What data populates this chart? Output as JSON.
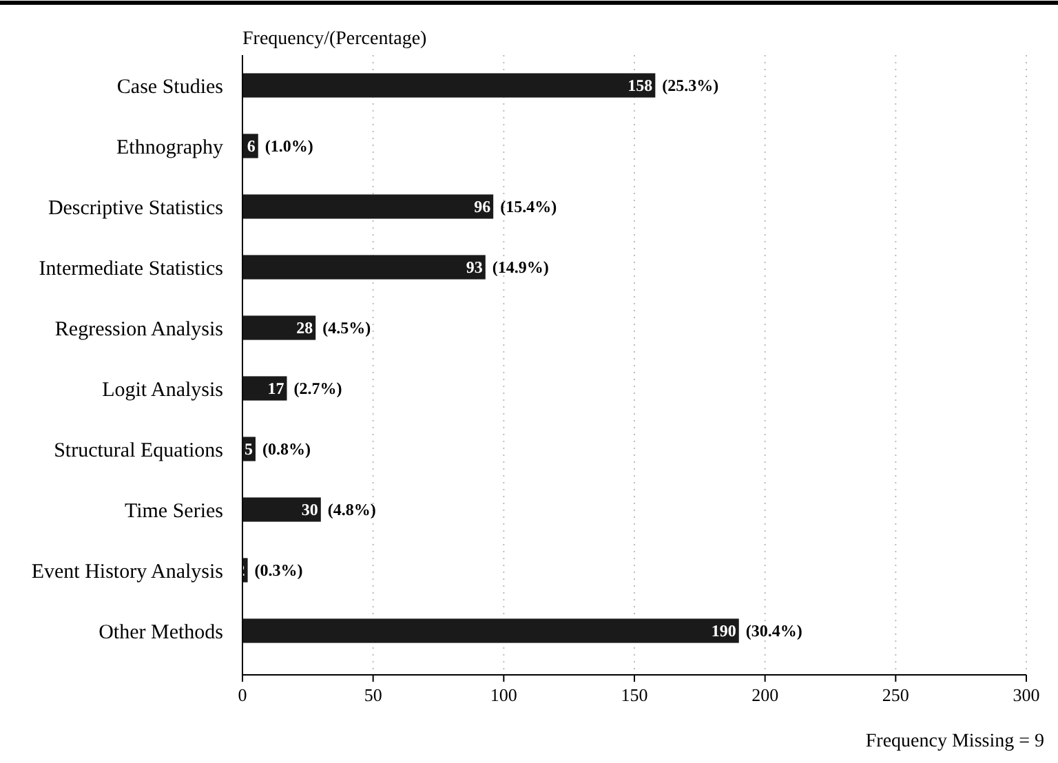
{
  "chart_data": {
    "type": "bar",
    "orientation": "horizontal",
    "xlabel": "Frequency/(Percentage)",
    "categories": [
      "Case Studies",
      "Ethnography",
      "Descriptive Statistics",
      "Intermediate Statistics",
      "Regression Analysis",
      "Logit Analysis",
      "Structural Equations",
      "Time Series",
      "Event History Analysis",
      "Other Methods"
    ],
    "values": [
      158,
      6,
      96,
      93,
      28,
      17,
      5,
      30,
      2,
      190
    ],
    "color": "#1a1a1a",
    "xlim": [
      0,
      300
    ],
    "xticks": [
      0,
      50,
      100,
      150,
      200,
      250,
      300
    ],
    "grid": "x",
    "data_labels": true,
    "annotations": [
      {
        "text": "(25.3%)",
        "x": 158,
        "y": "Case Studies"
      },
      {
        "text": "(1.0%)",
        "x": 6,
        "y": "Ethnography"
      },
      {
        "text": "(15.4%)",
        "x": 96,
        "y": "Descriptive Statistics"
      },
      {
        "text": "(14.9%)",
        "x": 93,
        "y": "Intermediate Statistics"
      },
      {
        "text": "(4.5%)",
        "x": 28,
        "y": "Regression Analysis"
      },
      {
        "text": "(2.7%)",
        "x": 17,
        "y": "Logit Analysis"
      },
      {
        "text": "(0.8%)",
        "x": 5,
        "y": "Structural Equations"
      },
      {
        "text": "(4.8%)",
        "x": 30,
        "y": "Time Series"
      },
      {
        "text": "(0.3%)",
        "x": 2,
        "y": "Event History Analysis"
      },
      {
        "text": "(30.4%)",
        "x": 190,
        "y": "Other Methods"
      },
      "Frequency Missing = 9"
    ]
  }
}
